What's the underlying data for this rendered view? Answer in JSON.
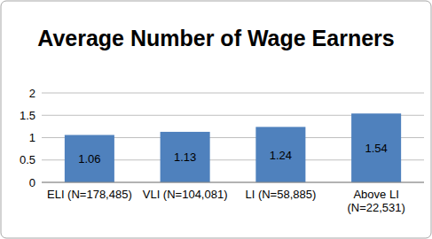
{
  "chart_data": {
    "type": "bar",
    "title": "Average Number of Wage Earners",
    "categories": [
      "ELI (N=178,485)",
      "VLI (N=104,081)",
      "LI (N=58,885)",
      "Above LI (N=22,531)"
    ],
    "values": [
      1.06,
      1.13,
      1.24,
      1.54
    ],
    "color": "#4f81bd",
    "ylim": [
      0,
      2
    ],
    "yticks": [
      0,
      0.5,
      1,
      1.5,
      2
    ],
    "grid": true,
    "data_labels": true
  }
}
